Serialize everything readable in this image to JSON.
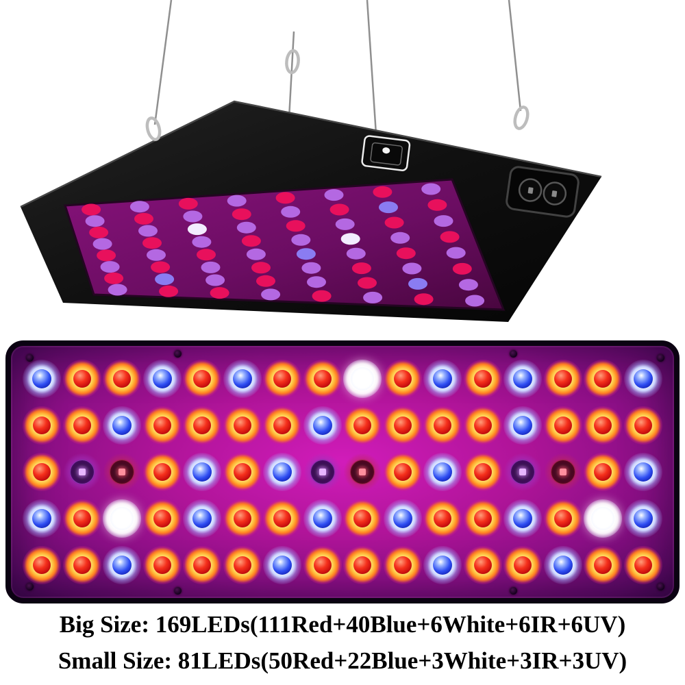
{
  "captions": {
    "line1": "Big Size: 169LEDs(111Red+40Blue+6White+6IR+6UV)",
    "line2": "Small Size: 81LEDs(50Red+22Blue+3White+3IR+3UV)"
  },
  "front_panel": {
    "grid": [
      "BRRBRBRRWRBRBRRB",
      "RRBRRRRBRRRRBRRR",
      "RUIRBRBUIRBRUIRB",
      "BRWRBRRBRBRRBRWB",
      "RRBRRRBRRRBRRBRR"
    ],
    "legend": {
      "R": "red",
      "B": "blue",
      "W": "white",
      "U": "uv",
      "I": "ir"
    },
    "colors": {
      "panel_magenta": "#b01499",
      "body_black": "#0b0212",
      "led_red": "#e81e10",
      "led_blue": "#2e4df2",
      "led_white": "#ffffff",
      "led_uv": "#6b1b8e",
      "led_ir": "#83103a"
    }
  },
  "lamp3d": {
    "grid": [
      "RPRPRPRP",
      "PRPRPRBR",
      "RPWPRPRP",
      "PRPRPWPR",
      "RPRPBPRP",
      "PRPRPRPR",
      "RBPRPRBP",
      "PRRPRPRP"
    ],
    "colors": {
      "R": "#e8105c",
      "P": "#b468e2",
      "B": "#8a7cf2",
      "W": "#f2ecff"
    },
    "body_color": "#141414",
    "face_color": "#6b0d62",
    "wire_color": "#8f8f8f"
  }
}
